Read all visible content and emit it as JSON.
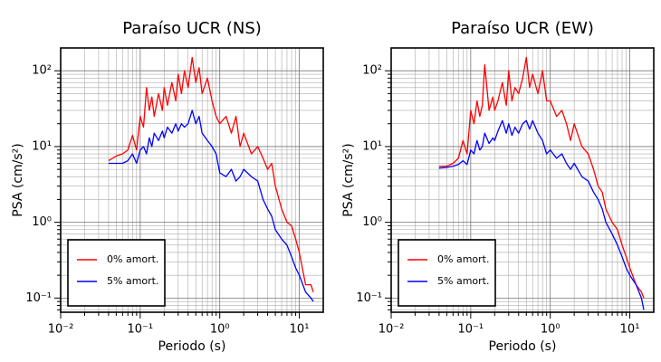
{
  "chart_data": [
    {
      "type": "line",
      "title": "Paraíso UCR (NS)",
      "xlabel": "Periodo (s)",
      "ylabel": "PSA (cm/s²)",
      "log_x": true,
      "log_y": true,
      "grid": true,
      "legend": "lower left",
      "xlim": [
        0.01,
        20
      ],
      "ylim": [
        0.065,
        200
      ],
      "xticks": [
        {
          "value": 0.01,
          "label": "10⁻²"
        },
        {
          "value": 0.1,
          "label": "10⁻¹"
        },
        {
          "value": 1,
          "label": "10⁰"
        },
        {
          "value": 10,
          "label": "10¹"
        }
      ],
      "yticks": [
        {
          "value": 0.1,
          "label": "10⁻¹"
        },
        {
          "value": 1,
          "label": "10⁰"
        },
        {
          "value": 10,
          "label": "10¹"
        },
        {
          "value": 100,
          "label": "10²"
        }
      ],
      "xminorticks": [
        0.02,
        0.03,
        0.04,
        0.05,
        0.06,
        0.07,
        0.08,
        0.09,
        0.2,
        0.3,
        0.4,
        0.5,
        0.6,
        0.7,
        0.8,
        0.9,
        2,
        3,
        4,
        5,
        6,
        7,
        8,
        9
      ],
      "yminorticks": [
        0.07,
        0.08,
        0.09,
        0.2,
        0.3,
        0.4,
        0.5,
        0.6,
        0.7,
        0.8,
        0.9,
        2,
        3,
        4,
        5,
        6,
        7,
        8,
        9,
        20,
        30,
        40,
        50,
        60,
        70,
        80,
        90
      ],
      "x": [
        0.04,
        0.05,
        0.06,
        0.07,
        0.08,
        0.09,
        0.1,
        0.11,
        0.12,
        0.13,
        0.14,
        0.15,
        0.17,
        0.19,
        0.2,
        0.22,
        0.25,
        0.28,
        0.3,
        0.33,
        0.36,
        0.4,
        0.45,
        0.5,
        0.55,
        0.6,
        0.7,
        0.8,
        0.9,
        1.0,
        1.2,
        1.4,
        1.6,
        1.8,
        2.0,
        2.5,
        3.0,
        3.5,
        4.0,
        4.5,
        5.0,
        6.0,
        7.0,
        8.0,
        9.0,
        10,
        12,
        14,
        15
      ],
      "series": [
        {
          "name": "0% amort.",
          "color": "#ff0000",
          "values": [
            6.5,
            7.5,
            8,
            9,
            14,
            9,
            25,
            18,
            60,
            30,
            45,
            25,
            50,
            30,
            60,
            35,
            70,
            40,
            90,
            50,
            100,
            60,
            150,
            70,
            110,
            50,
            80,
            40,
            25,
            20,
            25,
            15,
            25,
            10,
            15,
            8,
            10,
            7,
            5,
            6,
            3,
            1.5,
            1,
            0.9,
            0.6,
            0.4,
            0.15,
            0.15,
            0.12
          ]
        },
        {
          "name": "5% amort.",
          "color": "#0000ff",
          "values": [
            6,
            6,
            6,
            6.5,
            8,
            6,
            9,
            10,
            8,
            13,
            10,
            15,
            12,
            16,
            13,
            18,
            15,
            20,
            16,
            20,
            18,
            20,
            30,
            20,
            25,
            15,
            12,
            10,
            8,
            4.5,
            4,
            5,
            3.5,
            4,
            5,
            4,
            3.5,
            2,
            1.5,
            1.2,
            0.8,
            0.6,
            0.5,
            0.35,
            0.25,
            0.2,
            0.12,
            0.1,
            0.09
          ]
        }
      ]
    },
    {
      "type": "line",
      "title": "Paraíso UCR (EW)",
      "xlabel": "Periodo (s)",
      "ylabel": "PSA (cm/s²)",
      "log_x": true,
      "log_y": true,
      "grid": true,
      "legend": "lower left",
      "xlim": [
        0.01,
        20
      ],
      "ylim": [
        0.065,
        200
      ],
      "xticks": [
        {
          "value": 0.01,
          "label": "10⁻²"
        },
        {
          "value": 0.1,
          "label": "10⁻¹"
        },
        {
          "value": 1,
          "label": "10⁰"
        },
        {
          "value": 10,
          "label": "10¹"
        }
      ],
      "yticks": [
        {
          "value": 0.1,
          "label": "10⁻¹"
        },
        {
          "value": 1,
          "label": "10⁰"
        },
        {
          "value": 10,
          "label": "10¹"
        },
        {
          "value": 100,
          "label": "10²"
        }
      ],
      "xminorticks": [
        0.02,
        0.03,
        0.04,
        0.05,
        0.06,
        0.07,
        0.08,
        0.09,
        0.2,
        0.3,
        0.4,
        0.5,
        0.6,
        0.7,
        0.8,
        0.9,
        2,
        3,
        4,
        5,
        6,
        7,
        8,
        9
      ],
      "yminorticks": [
        0.07,
        0.08,
        0.09,
        0.2,
        0.3,
        0.4,
        0.5,
        0.6,
        0.7,
        0.8,
        0.9,
        2,
        3,
        4,
        5,
        6,
        7,
        8,
        9,
        20,
        30,
        40,
        50,
        60,
        70,
        80,
        90
      ],
      "x": [
        0.04,
        0.05,
        0.06,
        0.07,
        0.08,
        0.09,
        0.1,
        0.11,
        0.12,
        0.13,
        0.14,
        0.15,
        0.17,
        0.19,
        0.2,
        0.22,
        0.25,
        0.28,
        0.3,
        0.33,
        0.36,
        0.4,
        0.45,
        0.5,
        0.55,
        0.6,
        0.7,
        0.8,
        0.9,
        1.0,
        1.2,
        1.4,
        1.6,
        1.8,
        2.0,
        2.5,
        3.0,
        3.5,
        4.0,
        4.5,
        5.0,
        6.0,
        7.0,
        8.0,
        9.0,
        10,
        12,
        14,
        15
      ],
      "series": [
        {
          "name": "0% amort.",
          "color": "#ff0000",
          "values": [
            5.5,
            5.5,
            6,
            7,
            12,
            8,
            30,
            20,
            40,
            25,
            35,
            120,
            30,
            45,
            30,
            40,
            70,
            35,
            100,
            40,
            60,
            50,
            80,
            150,
            60,
            90,
            50,
            100,
            40,
            40,
            25,
            30,
            20,
            12,
            20,
            10,
            8,
            5,
            3,
            2.5,
            1.5,
            1,
            0.8,
            0.5,
            0.35,
            0.25,
            0.15,
            0.12,
            0.1
          ]
        },
        {
          "name": "5% amort.",
          "color": "#0000ff",
          "values": [
            5.2,
            5.3,
            5.5,
            5.8,
            6.5,
            5.8,
            9,
            8,
            12,
            9,
            10,
            15,
            11,
            13,
            12,
            16,
            22,
            15,
            20,
            14,
            18,
            15,
            20,
            22,
            17,
            22,
            15,
            12,
            8,
            9,
            7,
            8,
            6,
            5,
            6,
            4,
            3.5,
            2.5,
            2,
            1.5,
            1,
            0.7,
            0.5,
            0.35,
            0.25,
            0.2,
            0.15,
            0.1,
            0.07
          ]
        }
      ]
    }
  ]
}
